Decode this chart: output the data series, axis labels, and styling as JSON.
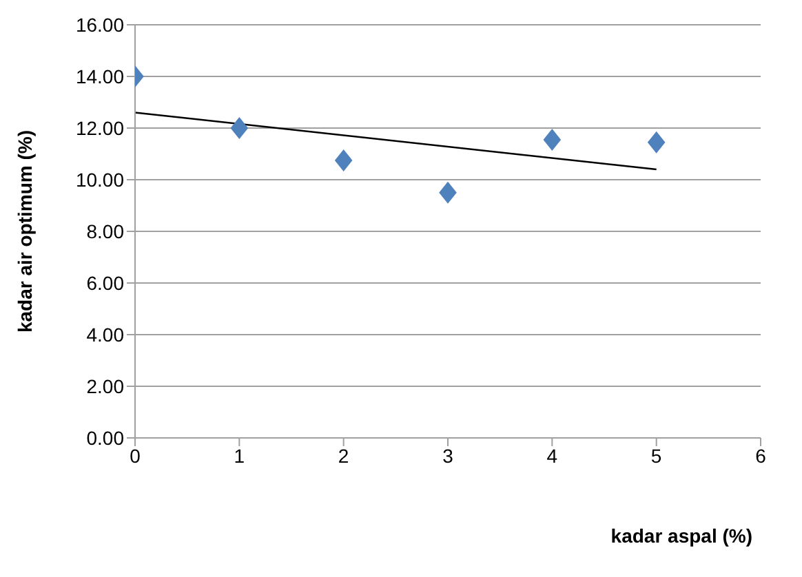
{
  "chart_data": {
    "type": "scatter",
    "xlabel": "kadar aspal (%)",
    "ylabel": "kadar air optimum (%)",
    "xlim": [
      0,
      6
    ],
    "xticks": [
      0,
      1,
      2,
      3,
      4,
      5,
      6
    ],
    "ylim": [
      0,
      16
    ],
    "yticks": [
      {
        "value": 0,
        "label": "0.00"
      },
      {
        "value": 2,
        "label": "2.00"
      },
      {
        "value": 4,
        "label": "4.00"
      },
      {
        "value": 6,
        "label": "6.00"
      },
      {
        "value": 8,
        "label": "8.00"
      },
      {
        "value": 10,
        "label": "10.00"
      },
      {
        "value": 12,
        "label": "12.00"
      },
      {
        "value": 14,
        "label": "14.00"
      },
      {
        "value": 16,
        "label": "16.00"
      }
    ],
    "grid": "y",
    "legend": false,
    "marker": "diamond",
    "series": [
      {
        "color": "#4f81bd",
        "x": [
          0,
          1,
          2,
          3,
          4,
          5
        ],
        "values": [
          14.0,
          12.0,
          10.75,
          9.5,
          11.55,
          11.45
        ]
      },
      {
        "type": "line",
        "color": "#000000",
        "marker": "none",
        "x": [
          0,
          5
        ],
        "values": [
          12.6,
          10.4
        ]
      }
    ]
  }
}
